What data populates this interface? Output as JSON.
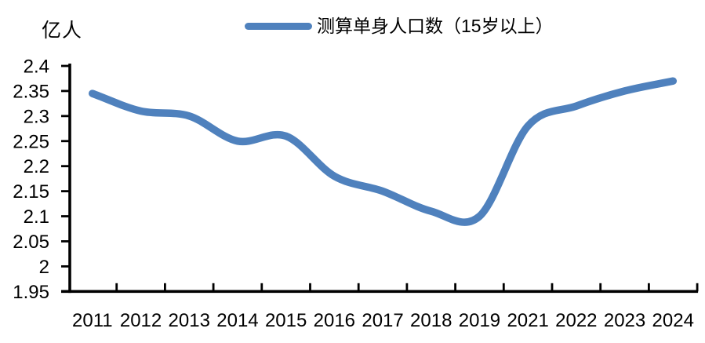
{
  "chart_data": {
    "type": "line",
    "smooth": true,
    "unit_label": "亿人",
    "title": "",
    "categories": [
      "2011",
      "2012",
      "2013",
      "2014",
      "2015",
      "2016",
      "2017",
      "2018",
      "2019",
      "2021",
      "2022",
      "2023",
      "2024"
    ],
    "series": [
      {
        "name": "测算单身人口数（15岁以上）",
        "color": "#4F81BD",
        "values": [
          2.345,
          2.31,
          2.3,
          2.25,
          2.26,
          2.18,
          2.15,
          2.11,
          2.1,
          2.28,
          2.32,
          2.35,
          2.37
        ]
      }
    ],
    "xlabel": "",
    "ylabel": "亿人",
    "ylim": [
      1.95,
      2.4
    ],
    "ytick_step": 0.05,
    "ytick_labels": [
      "2.4",
      "2.35",
      "2.3",
      "2.25",
      "2.2",
      "2.15",
      "2.1",
      "2.05",
      "2",
      "1.95"
    ],
    "grid": false,
    "legend_position": "top-center"
  },
  "legend": {
    "label": "测算单身人口数（15岁以上）",
    "color": "#4F81BD"
  },
  "colors": {
    "series": "#4F81BD",
    "axis": "#000000",
    "text": "#000000",
    "background": "#FFFFFF"
  }
}
